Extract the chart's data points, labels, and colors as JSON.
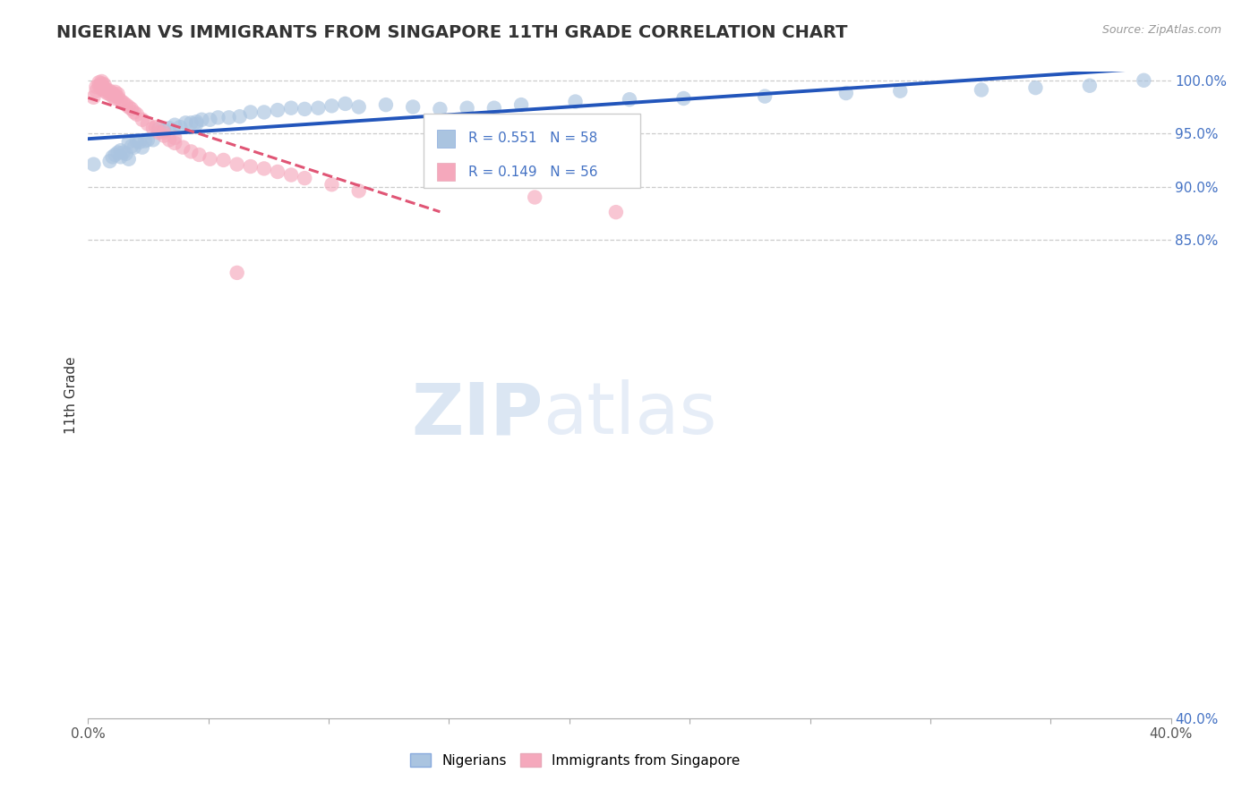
{
  "title": "NIGERIAN VS IMMIGRANTS FROM SINGAPORE 11TH GRADE CORRELATION CHART",
  "source_text": "Source: ZipAtlas.com",
  "ylabel": "11th Grade",
  "xlim": [
    0.0,
    0.4
  ],
  "ylim": [
    0.4,
    1.008
  ],
  "x_ticks": [
    0.0,
    0.04444,
    0.08889,
    0.13333,
    0.17778,
    0.22222,
    0.26667,
    0.31111,
    0.35556,
    0.4
  ],
  "x_tick_labels": [
    "0.0%",
    "",
    "",
    "",
    "",
    "",
    "",
    "",
    "",
    "40.0%"
  ],
  "y_ticks_right": [
    1.0,
    0.95,
    0.9,
    0.85,
    0.4
  ],
  "y_tick_labels_right": [
    "100.0%",
    "95.0%",
    "90.0%",
    "85.0%",
    "40.0%"
  ],
  "blue_R": 0.551,
  "blue_N": 58,
  "pink_R": 0.149,
  "pink_N": 56,
  "blue_color": "#aac4e0",
  "pink_color": "#f5a8bc",
  "blue_line_color": "#2255bb",
  "pink_line_color": "#e05575",
  "watermark_zip": "ZIP",
  "watermark_atlas": "atlas",
  "legend_label_blue": "Nigerians",
  "legend_label_pink": "Immigrants from Singapore",
  "title_fontsize": 14,
  "background_color": "#ffffff",
  "blue_x": [
    0.002,
    0.008,
    0.009,
    0.01,
    0.011,
    0.012,
    0.012,
    0.013,
    0.014,
    0.015,
    0.015,
    0.016,
    0.017,
    0.018,
    0.019,
    0.02,
    0.021,
    0.022,
    0.024,
    0.026,
    0.028,
    0.03,
    0.032,
    0.034,
    0.036,
    0.038,
    0.04,
    0.042,
    0.045,
    0.048,
    0.052,
    0.056,
    0.06,
    0.065,
    0.07,
    0.075,
    0.08,
    0.085,
    0.09,
    0.095,
    0.1,
    0.11,
    0.12,
    0.13,
    0.14,
    0.15,
    0.16,
    0.18,
    0.2,
    0.22,
    0.25,
    0.28,
    0.3,
    0.33,
    0.35,
    0.37,
    0.04,
    0.39
  ],
  "blue_y": [
    0.921,
    0.924,
    0.928,
    0.93,
    0.932,
    0.928,
    0.934,
    0.932,
    0.931,
    0.926,
    0.942,
    0.938,
    0.937,
    0.943,
    0.942,
    0.937,
    0.943,
    0.944,
    0.944,
    0.954,
    0.953,
    0.955,
    0.958,
    0.956,
    0.96,
    0.96,
    0.961,
    0.963,
    0.963,
    0.965,
    0.965,
    0.966,
    0.97,
    0.97,
    0.972,
    0.974,
    0.973,
    0.974,
    0.976,
    0.978,
    0.975,
    0.977,
    0.975,
    0.973,
    0.974,
    0.974,
    0.977,
    0.98,
    0.982,
    0.983,
    0.985,
    0.988,
    0.99,
    0.991,
    0.993,
    0.995,
    0.959,
    1.0
  ],
  "pink_x": [
    0.002,
    0.003,
    0.003,
    0.004,
    0.004,
    0.005,
    0.005,
    0.005,
    0.005,
    0.006,
    0.006,
    0.006,
    0.007,
    0.007,
    0.008,
    0.008,
    0.009,
    0.009,
    0.01,
    0.01,
    0.01,
    0.011,
    0.011,
    0.012,
    0.013,
    0.014,
    0.015,
    0.016,
    0.017,
    0.018,
    0.02,
    0.022,
    0.024,
    0.026,
    0.028,
    0.03,
    0.032,
    0.035,
    0.038,
    0.041,
    0.045,
    0.05,
    0.055,
    0.06,
    0.065,
    0.07,
    0.075,
    0.08,
    0.09,
    0.1,
    0.025,
    0.028,
    0.032,
    0.165,
    0.195,
    0.055
  ],
  "pink_y": [
    0.984,
    0.99,
    0.994,
    0.995,
    0.998,
    0.992,
    0.995,
    0.997,
    0.999,
    0.99,
    0.993,
    0.996,
    0.988,
    0.991,
    0.987,
    0.99,
    0.985,
    0.988,
    0.983,
    0.986,
    0.989,
    0.984,
    0.987,
    0.981,
    0.979,
    0.977,
    0.975,
    0.973,
    0.97,
    0.968,
    0.963,
    0.959,
    0.955,
    0.951,
    0.948,
    0.944,
    0.941,
    0.937,
    0.933,
    0.93,
    0.926,
    0.925,
    0.921,
    0.919,
    0.917,
    0.914,
    0.911,
    0.908,
    0.902,
    0.896,
    0.956,
    0.951,
    0.946,
    0.89,
    0.876,
    0.819
  ]
}
